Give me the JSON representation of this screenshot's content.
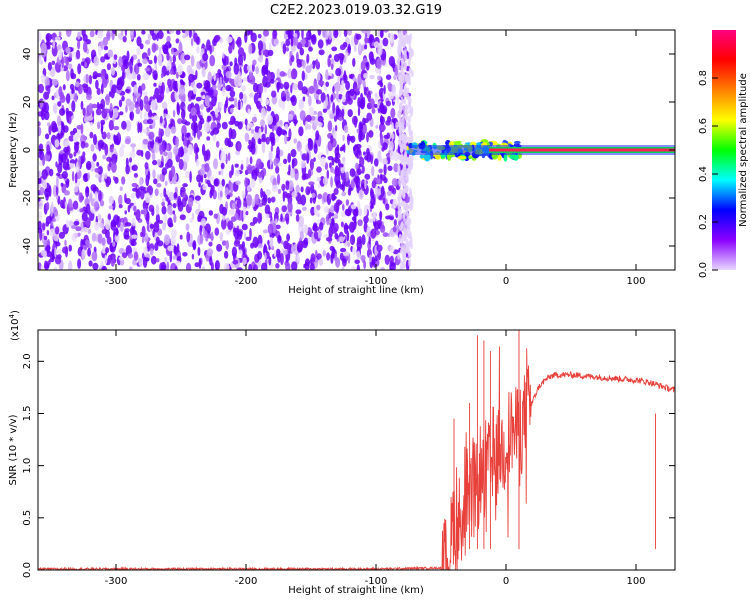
{
  "figure_title": "C2E2.2023.019.03.32.G19",
  "chart_data": [
    {
      "type": "heatmap",
      "xlabel": "Height of straight line (km)",
      "ylabel": "Frequency (Hz)",
      "xlim": [
        -360,
        130
      ],
      "ylim": [
        -50,
        50
      ],
      "x_ticks": [
        -300,
        -200,
        -100,
        0,
        100
      ],
      "y_ticks": [
        -40,
        -20,
        0,
        20,
        40
      ],
      "grid": false,
      "noise_region_x": [
        -360,
        -75
      ],
      "signal_line": {
        "x_start": -75,
        "x_end": 130,
        "frequency": 0
      },
      "colorbar": {
        "label": "Normalized spectral amplitude",
        "range": [
          0.0,
          1.0
        ],
        "ticks": [
          0.0,
          0.2,
          0.4,
          0.6,
          0.8
        ],
        "tick_labels": [
          "0.0",
          "0.2",
          "0.4",
          "0.6",
          "0.8"
        ],
        "colors": [
          "#e8d8ff",
          "#8a00ff",
          "#0000ff",
          "#00ffff",
          "#00ff00",
          "#ffff00",
          "#ff8000",
          "#ff0000",
          "#ff0080"
        ]
      }
    },
    {
      "type": "line",
      "xlabel": "Height of straight line (km)",
      "ylabel": "SNR (10 * v/v)",
      "y_multiplier_label": "(x10",
      "y_multiplier_exp": "4",
      "y_multiplier_close": ")",
      "xlim": [
        -360,
        130
      ],
      "ylim": [
        0,
        2.3
      ],
      "x_ticks": [
        -300,
        -200,
        -100,
        0,
        100
      ],
      "y_ticks": [
        0.0,
        0.5,
        1.0,
        1.5,
        2.0
      ],
      "y_tick_labels": [
        "0.0",
        "0.5",
        "1.0",
        "1.5",
        "2.0"
      ],
      "grid": false,
      "series": [
        {
          "color": "#e8403a",
          "x": [
            -360,
            -300,
            -200,
            -100,
            -50,
            -45,
            -42,
            -40,
            -38,
            -35,
            -32,
            -30,
            -28,
            -25,
            -22,
            -20,
            -18,
            -15,
            -12,
            -10,
            -8,
            -5,
            -2,
            0,
            2,
            5,
            8,
            10,
            12,
            15,
            18,
            20,
            25,
            30,
            35,
            40,
            50,
            60,
            70,
            80,
            90,
            100,
            110,
            115,
            120,
            125,
            130
          ],
          "y": [
            0.01,
            0.01,
            0.01,
            0.01,
            0.02,
            0.1,
            0.3,
            0.55,
            0.25,
            0.6,
            0.35,
            0.75,
            0.5,
            0.9,
            0.7,
            1.0,
            0.8,
            1.05,
            0.95,
            1.15,
            1.0,
            1.2,
            1.1,
            1.25,
            1.3,
            1.35,
            1.3,
            1.4,
            1.35,
            1.5,
            1.55,
            1.6,
            1.75,
            1.82,
            1.86,
            1.87,
            1.87,
            1.86,
            1.85,
            1.84,
            1.83,
            1.82,
            1.8,
            1.78,
            1.76,
            1.74,
            1.72
          ]
        }
      ]
    }
  ]
}
